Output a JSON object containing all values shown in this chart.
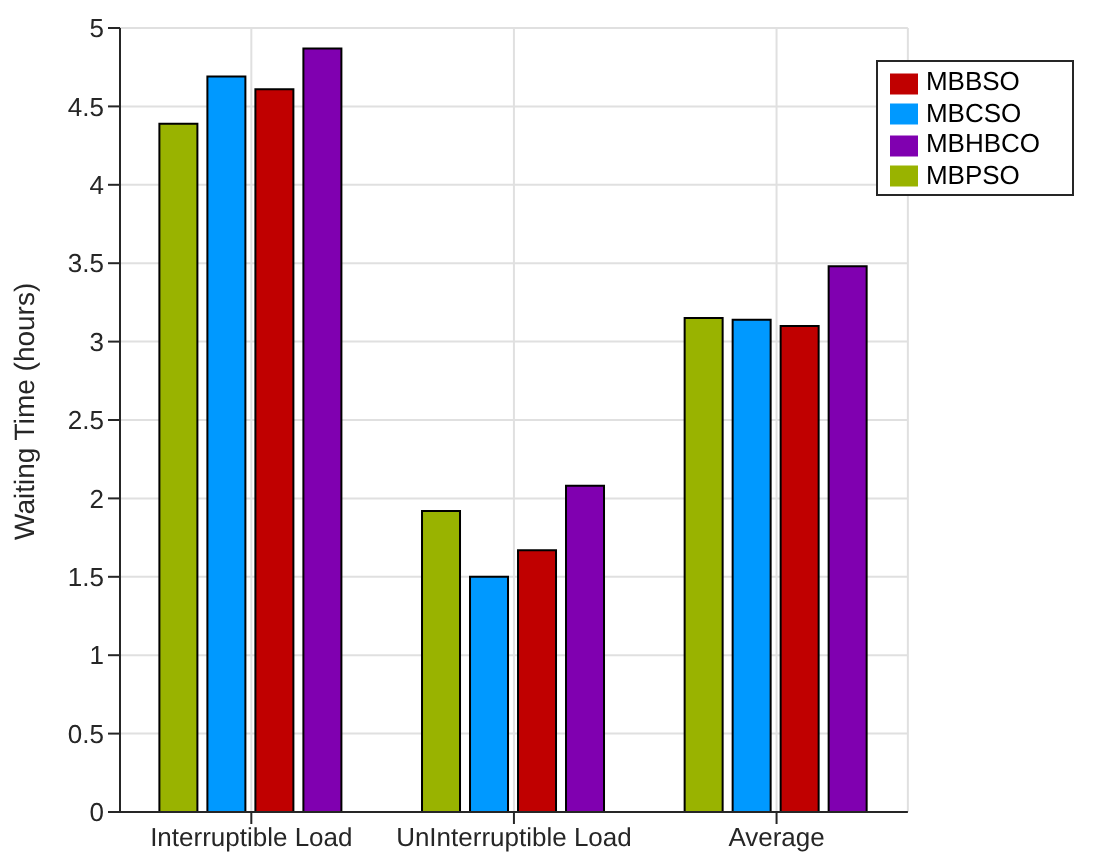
{
  "chart_data": {
    "type": "bar",
    "ylabel": "Waiting Time (hours)",
    "categories": [
      "Interruptible Load",
      "UnInterruptible Load",
      "Average"
    ],
    "series": [
      {
        "name": "MBPSO",
        "color": "#99b300",
        "values": [
          4.39,
          1.92,
          3.15
        ]
      },
      {
        "name": "MBCSO",
        "color": "#0099ff",
        "values": [
          4.69,
          1.5,
          3.14
        ]
      },
      {
        "name": "MBBSO",
        "color": "#c00000",
        "values": [
          4.61,
          1.67,
          3.1
        ]
      },
      {
        "name": "MBHBCO",
        "color": "#8000b0",
        "values": [
          4.87,
          2.08,
          3.48
        ]
      }
    ],
    "ylim": [
      0,
      5
    ],
    "yticks": [
      0,
      0.5,
      1,
      1.5,
      2,
      2.5,
      3,
      3.5,
      4,
      4.5,
      5
    ],
    "grid": true,
    "legend": "top right"
  }
}
